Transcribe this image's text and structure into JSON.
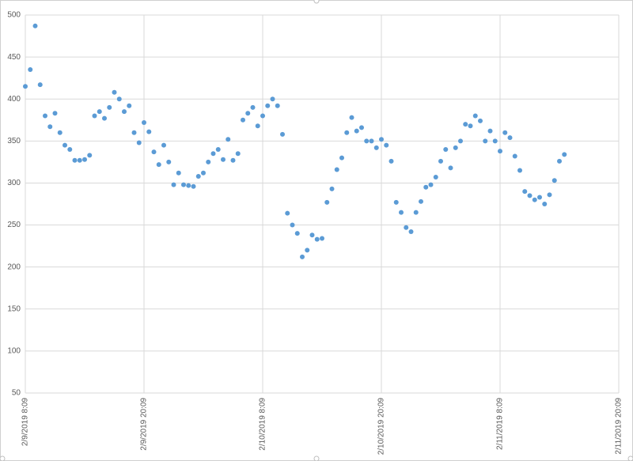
{
  "chart_data": {
    "type": "scatter",
    "x": [
      "2/9/2019 8:09",
      "2/9/2019 8:39",
      "2/9/2019 9:09",
      "2/9/2019 9:39",
      "2/9/2019 10:09",
      "2/9/2019 10:39",
      "2/9/2019 11:09",
      "2/9/2019 11:39",
      "2/9/2019 12:09",
      "2/9/2019 12:39",
      "2/9/2019 13:09",
      "2/9/2019 13:39",
      "2/9/2019 14:09",
      "2/9/2019 14:39",
      "2/9/2019 15:09",
      "2/9/2019 15:39",
      "2/9/2019 16:09",
      "2/9/2019 16:39",
      "2/9/2019 17:09",
      "2/9/2019 17:39",
      "2/9/2019 18:09",
      "2/9/2019 18:39",
      "2/9/2019 19:09",
      "2/9/2019 19:39",
      "2/9/2019 20:09",
      "2/9/2019 20:39",
      "2/9/2019 21:09",
      "2/9/2019 21:39",
      "2/9/2019 22:09",
      "2/9/2019 22:39",
      "2/9/2019 23:09",
      "2/9/2019 23:39",
      "2/10/2019 0:09",
      "2/10/2019 0:39",
      "2/10/2019 1:09",
      "2/10/2019 1:39",
      "2/10/2019 2:09",
      "2/10/2019 2:39",
      "2/10/2019 3:09",
      "2/10/2019 3:39",
      "2/10/2019 4:09",
      "2/10/2019 4:39",
      "2/10/2019 5:09",
      "2/10/2019 5:39",
      "2/10/2019 6:09",
      "2/10/2019 6:39",
      "2/10/2019 7:09",
      "2/10/2019 7:39",
      "2/10/2019 8:09",
      "2/10/2019 8:39",
      "2/10/2019 9:09",
      "2/10/2019 9:39",
      "2/10/2019 10:09",
      "2/10/2019 10:39",
      "2/10/2019 11:09",
      "2/10/2019 11:39",
      "2/10/2019 12:09",
      "2/10/2019 12:39",
      "2/10/2019 13:09",
      "2/10/2019 13:39",
      "2/10/2019 14:09",
      "2/10/2019 14:39",
      "2/10/2019 15:09",
      "2/10/2019 15:39",
      "2/10/2019 16:09",
      "2/10/2019 16:39",
      "2/10/2019 17:09",
      "2/10/2019 17:39",
      "2/10/2019 18:09",
      "2/10/2019 18:39",
      "2/10/2019 19:09",
      "2/10/2019 19:39",
      "2/10/2019 20:09",
      "2/10/2019 20:39",
      "2/10/2019 21:09",
      "2/10/2019 21:39",
      "2/10/2019 22:09",
      "2/10/2019 22:39",
      "2/10/2019 23:09",
      "2/10/2019 23:39",
      "2/11/2019 0:09",
      "2/11/2019 0:39",
      "2/11/2019 1:09",
      "2/11/2019 1:39",
      "2/11/2019 2:09",
      "2/11/2019 2:39",
      "2/11/2019 3:09",
      "2/11/2019 3:39",
      "2/11/2019 4:09",
      "2/11/2019 4:39",
      "2/11/2019 5:09",
      "2/11/2019 5:39",
      "2/11/2019 6:09",
      "2/11/2019 6:39",
      "2/11/2019 7:09",
      "2/11/2019 7:39",
      "2/11/2019 8:09",
      "2/11/2019 8:39",
      "2/11/2019 9:09",
      "2/11/2019 9:39",
      "2/11/2019 10:09",
      "2/11/2019 10:39",
      "2/11/2019 11:09",
      "2/11/2019 11:39",
      "2/11/2019 12:09",
      "2/11/2019 12:39",
      "2/11/2019 13:09",
      "2/11/2019 13:39",
      "2/11/2019 14:09",
      "2/11/2019 14:39"
    ],
    "values": [
      415,
      435,
      487,
      417,
      380,
      367,
      383,
      360,
      345,
      340,
      327,
      327,
      328,
      333,
      380,
      385,
      377,
      390,
      408,
      400,
      385,
      392,
      360,
      348,
      372,
      361,
      337,
      322,
      345,
      325,
      298,
      312,
      298,
      297,
      296,
      308,
      312,
      325,
      335,
      340,
      328,
      352,
      327,
      335,
      375,
      383,
      390,
      368,
      380,
      392,
      400,
      392,
      358,
      264,
      250,
      240,
      212,
      220,
      238,
      233,
      234,
      277,
      293,
      316,
      330,
      360,
      378,
      362,
      366,
      350,
      350,
      342,
      352,
      345,
      326,
      277,
      265,
      247,
      242,
      265,
      278,
      295,
      298,
      307,
      326,
      340,
      318,
      342,
      350,
      370,
      368,
      380,
      374,
      350,
      362,
      350,
      338,
      360,
      354,
      332,
      315,
      290,
      285,
      280,
      283,
      275,
      286,
      303,
      326,
      334
    ],
    "color": "#5b9bd5",
    "xlim": [
      "2/9/2019 8:09",
      "2/11/2019 20:09"
    ],
    "xticks": [
      "2/9/2019 8:09",
      "2/9/2019 20:09",
      "2/10/2019 8:09",
      "2/10/2019 20:09",
      "2/11/2019 8:09",
      "2/11/2019 20:09"
    ],
    "ylim": [
      50,
      500
    ],
    "yticks": [
      50,
      100,
      150,
      200,
      250,
      300,
      350,
      400,
      450,
      500
    ],
    "grid": true
  }
}
